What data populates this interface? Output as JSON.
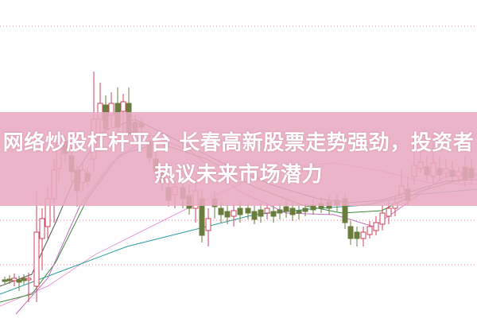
{
  "headline": {
    "title": "网络炒股杠杆平台 长春高新股票走势强劲，投资者热议未来市场潜力"
  },
  "colors": {
    "banner": "#e8aac0",
    "candle_up": "#d0405a",
    "candle_down": "#6b7d3c",
    "title_text": "#ffffff"
  }
}
